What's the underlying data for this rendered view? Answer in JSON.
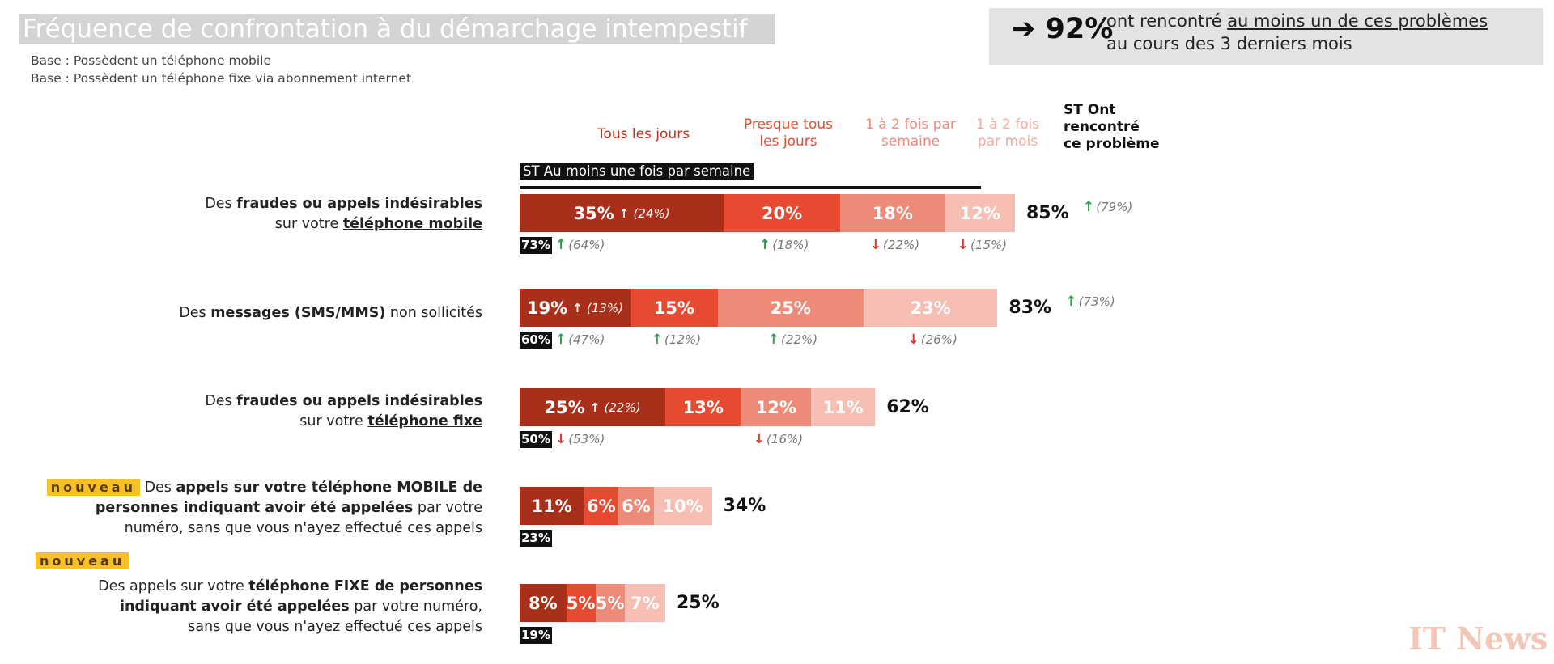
{
  "header": {
    "title": "Fréquence de confrontation à du démarchage intempestif",
    "base_mobile": "Base : Possèdent un téléphone mobile",
    "base_fixe": "Base : Possèdent un téléphone fixe via abonnement internet"
  },
  "kpi": {
    "arrow": "➔",
    "value": "92%",
    "text_pre": "ont rencontré ",
    "text_underlined": "au moins un de ces problèmes",
    "text_line2": "au cours des 3 derniers mois"
  },
  "legend": {
    "daily": "Tous les jours",
    "almost_daily_1": "Presque tous",
    "almost_daily_2": "les jours",
    "weekly_1": "1 à 2 fois par",
    "weekly_2": "semaine",
    "monthly_1": "1 à 2 fois",
    "monthly_2": "par mois",
    "st_total_1": "ST Ont",
    "st_total_2": "rencontré",
    "st_total_3": "ce problème",
    "st_weekly": "ST Au moins une fois par semaine"
  },
  "rows": [
    {
      "label_a": "Des ",
      "label_b": "fraudes ou appels indésirables",
      "label_c": "sur votre ",
      "label_d": "téléphone mobile"
    },
    {
      "label_a": "Des ",
      "label_b": "messages (SMS/MMS)",
      "label_c": " non sollicités"
    },
    {
      "label_a": "Des ",
      "label_b": "fraudes ou appels indésirables",
      "label_c": "sur votre ",
      "label_d": "téléphone fixe"
    },
    {
      "badge": "nouveau",
      "l1_a": " Des ",
      "l1_b": "appels sur votre téléphone MOBILE de",
      "l2_a": "personnes indiquant avoir été appelées",
      "l2_b": " par votre",
      "l3": "numéro, sans que vous n'ayez effectué ces appels"
    },
    {
      "badge": "nouveau",
      "l1_a": "Des appels sur votre ",
      "l1_b": "téléphone FIXE de personnes",
      "l2_a": "indiquant avoir été appelées",
      "l2_b": " par votre numéro,",
      "l3": "sans que vous n'ayez effectué ces appels"
    }
  ],
  "chart_data": {
    "type": "bar",
    "stacked": true,
    "orientation": "horizontal",
    "title": "Fréquence de confrontation à du démarchage intempestif",
    "categories": [
      "Des fraudes ou appels indésirables sur votre téléphone mobile",
      "Des messages (SMS/MMS) non sollicités",
      "Des fraudes ou appels indésirables sur votre téléphone fixe",
      "Des appels sur votre téléphone MOBILE de personnes indiquant avoir été appelées par votre numéro, sans que vous n'ayez effectué ces appels",
      "Des appels sur votre téléphone FIXE de personnes indiquant avoir été appelées par votre numéro, sans que vous n'ayez effectué ces appels"
    ],
    "series": [
      {
        "name": "Tous les jours",
        "color": "#a8301a",
        "values": [
          35,
          19,
          25,
          11,
          8
        ],
        "labels": [
          "35%",
          "19%",
          "25%",
          "11%",
          "8%"
        ]
      },
      {
        "name": "Presque tous les jours",
        "color": "#e64b32",
        "values": [
          20,
          15,
          13,
          6,
          5
        ],
        "labels": [
          "20%",
          "15%",
          "13%",
          "6%",
          "5%"
        ]
      },
      {
        "name": "1 à 2 fois par semaine",
        "color": "#ee8a78",
        "values": [
          18,
          25,
          12,
          6,
          5
        ],
        "labels": [
          "18%",
          "25%",
          "12%",
          "6%",
          "5%"
        ]
      },
      {
        "name": "1 à 2 fois par mois",
        "color": "#f7bfb4",
        "values": [
          12,
          23,
          11,
          10,
          7
        ],
        "labels": [
          "12%",
          "23%",
          "11%",
          "10%",
          "7%"
        ]
      }
    ],
    "totals": [
      "85%",
      "83%",
      "62%",
      "34%",
      "25%"
    ],
    "st_weekly": [
      "73%",
      "60%",
      "50%",
      "23%",
      "19%"
    ],
    "comparisons": [
      {
        "daily": {
          "dir": "up",
          "text": "(24%)",
          "inside": true
        },
        "almost_daily": {
          "dir": "up",
          "text": "(18%)"
        },
        "weekly": {
          "dir": "down",
          "text": "(22%)"
        },
        "monthly": {
          "dir": "down",
          "text": "(15%)"
        },
        "total": {
          "dir": "up",
          "text": "(79%)"
        },
        "st": {
          "dir": "up",
          "text": "(64%)"
        }
      },
      {
        "daily": {
          "dir": "up",
          "text": "(13%)",
          "inside": true
        },
        "almost_daily": {
          "dir": "up",
          "text": "(12%)"
        },
        "weekly": {
          "dir": "up",
          "text": "(22%)"
        },
        "monthly": {
          "dir": "down",
          "text": "(26%)"
        },
        "total": {
          "dir": "up",
          "text": "(73%)"
        },
        "st": {
          "dir": "up",
          "text": "(47%)"
        }
      },
      {
        "daily": {
          "dir": "up",
          "text": "(22%)",
          "inside": true
        },
        "weekly": {
          "dir": "down",
          "text": "(16%)"
        },
        "st": {
          "dir": "down",
          "text": "(53%)"
        }
      },
      {},
      {}
    ],
    "xlim": [
      0,
      100
    ]
  },
  "watermark": "IT News"
}
